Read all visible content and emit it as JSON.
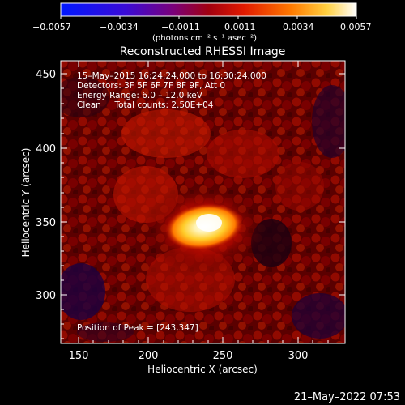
{
  "colorbar": {
    "ticks": [
      "−0.0057",
      "−0.0034",
      "−0.0011",
      "0.0011",
      "0.0034",
      "0.0057"
    ],
    "units": "(photons cm⁻² s⁻¹ asec⁻²)"
  },
  "title": "Reconstructed RHESSI Image",
  "info": {
    "time_range": "15–May–2015 16:24:24.000 to 16:30:24.000",
    "detectors": "Detectors: 3F 5F 6F 7F 8F 9F, Att 0",
    "energy": "Energy Range: 6.0 – 12.0 keV",
    "clean": "Clean     Total counts: 2.50E+04",
    "peak": "Position of Peak = [243,347]"
  },
  "axes": {
    "xlabel": "Heliocentric X (arcsec)",
    "ylabel": "Heliocentric Y (arcsec)",
    "xticks": [
      "150",
      "200",
      "250",
      "300"
    ],
    "yticks": [
      "450",
      "400",
      "350",
      "300"
    ]
  },
  "footer_timestamp": "21–May–2022 07:53"
}
